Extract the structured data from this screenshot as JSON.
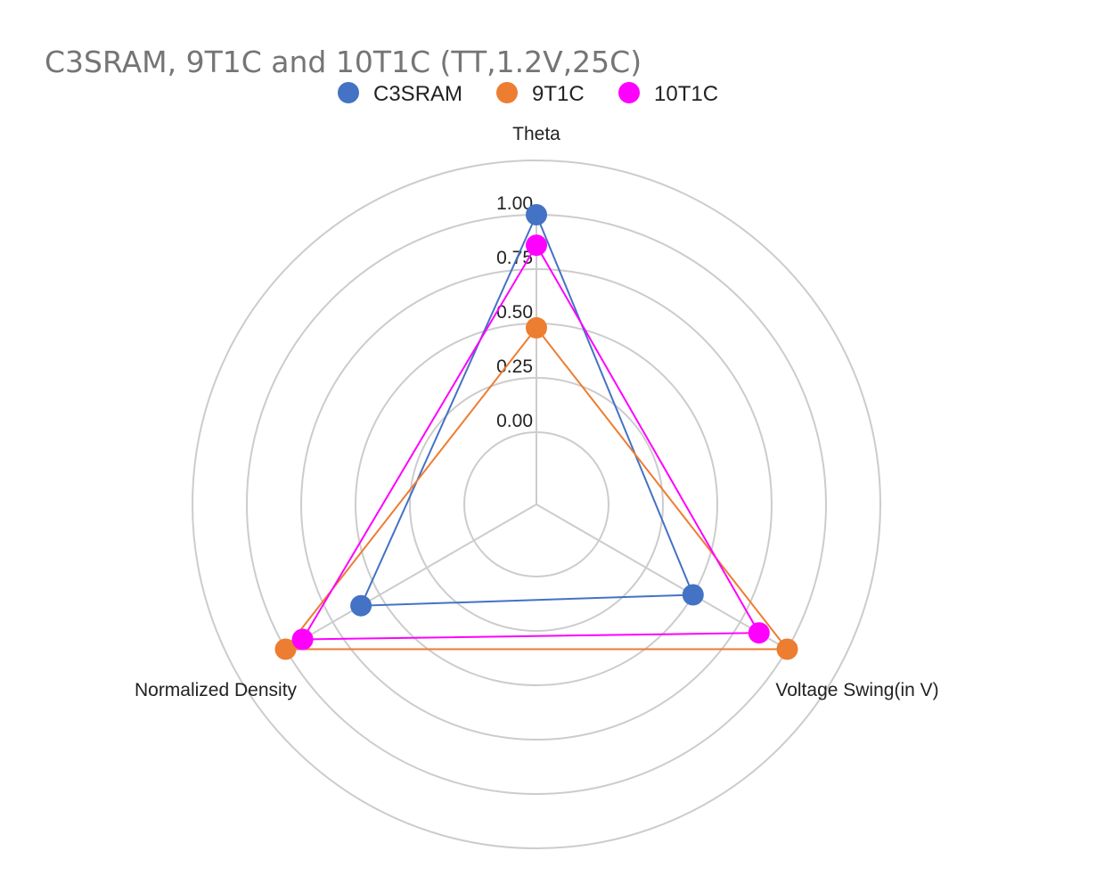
{
  "chart_data": {
    "type": "radar",
    "title": "C3SRAM, 9T1C and 10T1C (TT,1.2V,25C)",
    "axes": [
      "Theta",
      "Voltage Swing(in V)",
      "Normalized Density"
    ],
    "ticks": [
      "0.00",
      "0.25",
      "0.50",
      "0.75",
      "1.00"
    ],
    "range": [
      0,
      1
    ],
    "grid": true,
    "legend_position": "top",
    "series": [
      {
        "name": "C3SRAM",
        "color": "#4472C4",
        "values": [
          1.0,
          0.5,
          0.6
        ]
      },
      {
        "name": "9T1C",
        "color": "#ED7D31",
        "values": [
          0.48,
          1.0,
          1.0
        ]
      },
      {
        "name": "10T1C",
        "color": "#FF00FF",
        "values": [
          0.86,
          0.85,
          0.91
        ]
      }
    ]
  }
}
